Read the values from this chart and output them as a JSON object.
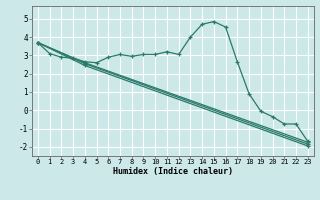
{
  "title": "",
  "xlabel": "Humidex (Indice chaleur)",
  "bg_color": "#cce8e8",
  "grid_color": "#ffffff",
  "line_color": "#2a7a6a",
  "xlim": [
    -0.5,
    23.5
  ],
  "ylim": [
    -2.5,
    5.7
  ],
  "xticks": [
    0,
    1,
    2,
    3,
    4,
    5,
    6,
    7,
    8,
    9,
    10,
    11,
    12,
    13,
    14,
    15,
    16,
    17,
    18,
    19,
    20,
    21,
    22,
    23
  ],
  "yticks": [
    -2,
    -1,
    0,
    1,
    2,
    3,
    4,
    5
  ],
  "line1_x": [
    0,
    1,
    2,
    3,
    4,
    5,
    6,
    7,
    8,
    9,
    10,
    11,
    12,
    13,
    14,
    15,
    16,
    17,
    18,
    19,
    20,
    21,
    22,
    23
  ],
  "line1_y": [
    3.7,
    3.1,
    2.9,
    2.85,
    2.65,
    2.6,
    2.9,
    3.05,
    2.95,
    3.05,
    3.05,
    3.2,
    3.05,
    4.0,
    4.7,
    4.85,
    4.55,
    2.65,
    0.9,
    -0.05,
    -0.35,
    -0.75,
    -0.75,
    -1.7
  ],
  "line2_x": [
    0,
    4,
    23
  ],
  "line2_y": [
    3.7,
    2.6,
    -1.75
  ],
  "line3_x": [
    0,
    4,
    23
  ],
  "line3_y": [
    3.7,
    2.55,
    -1.85
  ],
  "line4_x": [
    0,
    4,
    23
  ],
  "line4_y": [
    3.7,
    2.45,
    -1.95
  ]
}
